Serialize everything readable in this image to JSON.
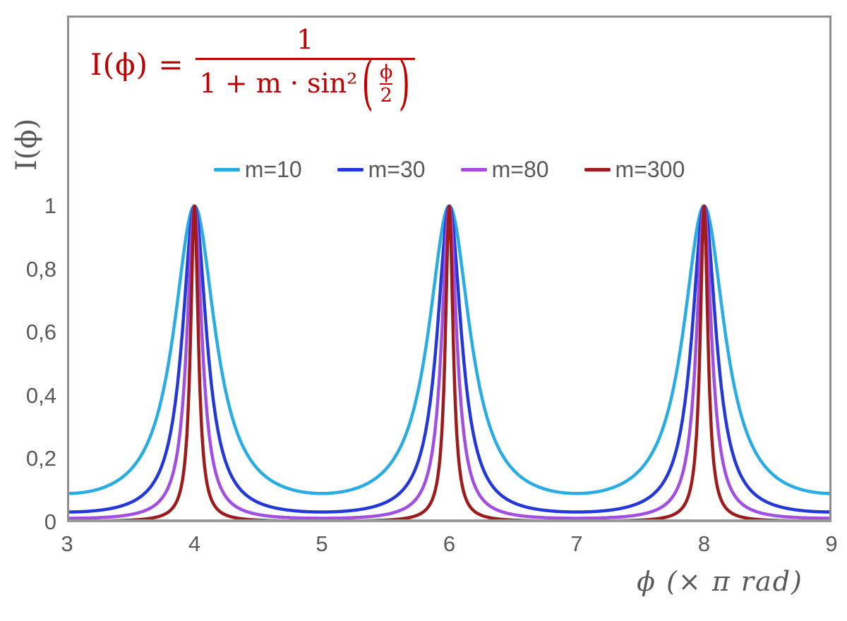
{
  "colors": {
    "formula_red": "#C00000",
    "axis_line_gray": "#8F8F8F",
    "label_text_gray": "#595959",
    "background": "#FFFFFF"
  },
  "formula": {
    "lhs": "I(ϕ) =",
    "numerator": "1",
    "den_prefix": "1 + m · sin²",
    "open_paren": "(",
    "inner_num": "ϕ",
    "inner_den": "2",
    "close_paren": ")"
  },
  "axes": {
    "x_label": "ϕ  (× π rad)",
    "y_label": "I(ϕ)",
    "x_ticks": [
      "3",
      "4",
      "5",
      "6",
      "7",
      "8",
      "9"
    ],
    "y_ticks": [
      "0",
      "0,2",
      "0,4",
      "0,6",
      "0,8",
      "1"
    ]
  },
  "chart_data": {
    "type": "line",
    "title": "",
    "function": "I(phi) = 1 / (1 + m * sin^2(phi/2)), x axis in units of pi rad (phi = x*pi)",
    "xlabel": "ϕ (× π rad)",
    "ylabel": "I(ϕ)",
    "xlim": [
      3,
      9
    ],
    "ylim": [
      0,
      1
    ],
    "x_tick_values": [
      3,
      4,
      5,
      6,
      7,
      8,
      9
    ],
    "y_tick_values": [
      0,
      0.2,
      0.4,
      0.6,
      0.8,
      1
    ],
    "grid": false,
    "legend_position": "top-center",
    "peaks_x": [
      4,
      6,
      8
    ],
    "peak_y": 1,
    "series": [
      {
        "name": "m=10",
        "m": 10,
        "color": "#29ACE2",
        "peak_y": 1,
        "valley_y": 0.091
      },
      {
        "name": "m=30",
        "m": 30,
        "color": "#2438D8",
        "peak_y": 1,
        "valley_y": 0.032
      },
      {
        "name": "m=80",
        "m": 80,
        "color": "#A14FE0",
        "peak_y": 1,
        "valley_y": 0.012
      },
      {
        "name": "m=300",
        "m": 300,
        "color": "#9E1B1B",
        "peak_y": 1,
        "valley_y": 0.003
      }
    ]
  }
}
